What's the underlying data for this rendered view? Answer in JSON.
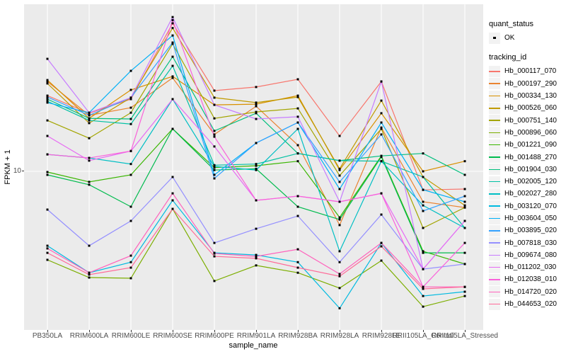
{
  "figure": {
    "background": "#FFFFFF",
    "panel_background": "#EBEBEB",
    "grid_color": "#FFFFFF",
    "point_color": "#000000",
    "axis_text_color": "#4D4D4D"
  },
  "axes": {
    "x_label": "sample_name",
    "y_label": "FPKM + 1",
    "y_tick_labels": [
      "10"
    ],
    "y_scale": "log10"
  },
  "legend": {
    "quant_status": {
      "title": "quant_status",
      "items": [
        {
          "label": "OK",
          "marker": "black-point"
        }
      ]
    },
    "tracking_id": {
      "title": "tracking_id"
    }
  },
  "chart_data": {
    "type": "line",
    "title": "",
    "xlabel": "sample_name",
    "ylabel": "FPKM + 1",
    "yscale": "log10",
    "ylim": [
      1.1,
      130
    ],
    "grid": "major",
    "legend_position": "right",
    "marker_meaning": "quant_status = OK (black point)",
    "categories": [
      "PB350LA",
      "RRIM600LA",
      "RRIM600LE",
      "RRIM600SE",
      "RRIM600PE",
      "RRIM901LA",
      "RRIM928BA",
      "RRIM928LA",
      "RRIM928LE",
      "RRII105LA_Control",
      "RRII105LA_Stressed"
    ],
    "series": [
      {
        "name": "Hb_000117_070",
        "color": "#F8766D",
        "values": [
          32.3,
          24.6,
          30.6,
          99,
          34.9,
          36.9,
          41.6,
          17.3,
          40.2,
          7.5,
          7.6
        ]
      },
      {
        "name": "Hb_000197_290",
        "color": "#EA8331",
        "values": [
          40.2,
          23.8,
          26.8,
          42.5,
          17.7,
          27.4,
          15.0,
          4.35,
          19.7,
          6.24,
          5.71
        ]
      },
      {
        "name": "Hb_000334_130",
        "color": "#D89000",
        "values": [
          41.1,
          22.7,
          35.3,
          43.5,
          28.0,
          28.3,
          32.3,
          10.2,
          24.6,
          10.0,
          11.7
        ]
      },
      {
        "name": "Hb_000526_060",
        "color": "#C09B00",
        "values": [
          39.0,
          21.1,
          31.3,
          92,
          31.3,
          29.0,
          31.6,
          10.4,
          29.9,
          9.16,
          5.9
        ]
      },
      {
        "name": "Hb_000751_140",
        "color": "#A3A500",
        "values": [
          22.0,
          16.7,
          24.8,
          72,
          22.7,
          25.1,
          26.5,
          9.36,
          19.3,
          4.16,
          5.71
        ]
      },
      {
        "name": "Hb_000896_060",
        "color": "#7CAE00",
        "values": [
          2.54,
          1.93,
          1.91,
          5.59,
          1.83,
          2.33,
          2.08,
          1.64,
          2.51,
          1.23,
          1.45
        ]
      },
      {
        "name": "Hb_001221_090",
        "color": "#39B600",
        "values": [
          9.89,
          8.49,
          9.47,
          19.3,
          10.6,
          10.9,
          11.7,
          4.9,
          12.7,
          2.9,
          2.38
        ]
      },
      {
        "name": "Hb_001488_270",
        "color": "#00BB4E",
        "values": [
          9.47,
          8.13,
          5.78,
          19.3,
          10.2,
          10.4,
          5.78,
          4.74,
          12.5,
          2.83,
          2.83
        ]
      },
      {
        "name": "Hb_001904_030",
        "color": "#00BF7D",
        "values": [
          30.6,
          22.7,
          22.5,
          59,
          18.7,
          24.6,
          13.2,
          11.8,
          12.7,
          13.2,
          9.47
        ]
      },
      {
        "name": "Hb_002005_120",
        "color": "#00C1A3",
        "values": [
          29.6,
          22.0,
          20.8,
          51.2,
          11.0,
          11.2,
          13.2,
          11.8,
          11.7,
          9.16,
          4.16
        ]
      },
      {
        "name": "Hb_002027_280",
        "color": "#00BFC4",
        "values": [
          13.0,
          12.3,
          11.2,
          30.6,
          10.8,
          10.2,
          19.3,
          2.9,
          11.7,
          5.9,
          4.16
        ]
      },
      {
        "name": "Hb_003120_070",
        "color": "#00BAE0",
        "values": [
          3.16,
          2.08,
          2.45,
          6.38,
          2.83,
          2.74,
          2.45,
          1.2,
          3.3,
          1.45,
          1.55
        ]
      },
      {
        "name": "Hb_003604_050",
        "color": "#00B0F6",
        "values": [
          29.0,
          24.8,
          47.4,
          82,
          9.47,
          15.5,
          21.3,
          7.6,
          21.3,
          7.52,
          6.24
        ]
      },
      {
        "name": "Hb_003895_020",
        "color": "#35A2FF",
        "values": [
          31.6,
          23.8,
          31.3,
          73.5,
          8.96,
          15.5,
          21.3,
          8.49,
          17.7,
          5.41,
          6.81
        ]
      },
      {
        "name": "Hb_007818_030",
        "color": "#9590FF",
        "values": [
          5.53,
          3.16,
          4.64,
          9.16,
          3.3,
          4.11,
          5.01,
          2.45,
          5.12,
          2.2,
          2.38
        ]
      },
      {
        "name": "Hb_009674_080",
        "color": "#C77CFF",
        "values": [
          57.1,
          24.8,
          31.3,
          109,
          28.0,
          22.5,
          23.3,
          6.24,
          40.2,
          2.2,
          4.64
        ]
      },
      {
        "name": "Hb_011202_030",
        "color": "#E76BF3",
        "values": [
          17.3,
          11.8,
          13.7,
          30.6,
          14.7,
          6.38,
          6.81,
          6.24,
          7.11,
          2.2,
          4.64
        ]
      },
      {
        "name": "Hb_012038_010",
        "color": "#FA62DB",
        "values": [
          13.0,
          12.3,
          13.7,
          104,
          17.1,
          6.38,
          6.81,
          6.24,
          7.11,
          1.67,
          3.3
        ]
      },
      {
        "name": "Hb_014720_020",
        "color": "#FF62BC",
        "values": [
          3.03,
          2.08,
          2.71,
          7.11,
          2.8,
          2.68,
          2.99,
          2.04,
          3.3,
          1.67,
          1.67
        ]
      },
      {
        "name": "Hb_044653_020",
        "color": "#FF6A98",
        "values": [
          2.83,
          2.02,
          2.25,
          5.59,
          2.68,
          2.6,
          2.25,
          1.97,
          3.13,
          1.62,
          1.67
        ]
      }
    ]
  }
}
